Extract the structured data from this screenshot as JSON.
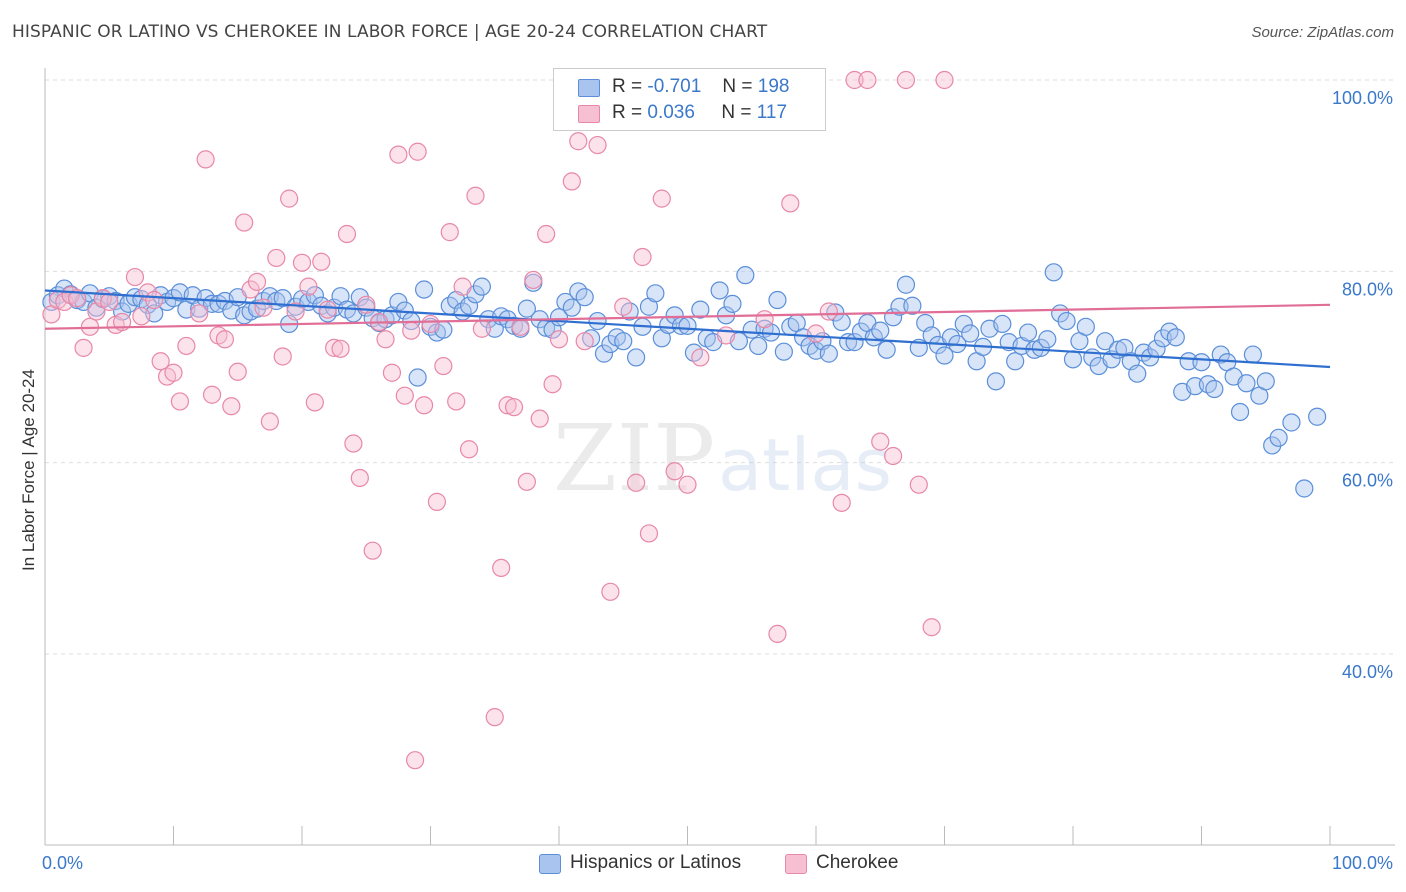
{
  "title": "HISPANIC OR LATINO VS CHEROKEE IN LABOR FORCE | AGE 20-24 CORRELATION CHART",
  "source": "Source: ZipAtlas.com",
  "watermark": {
    "zip": "ZIP",
    "atlas": "atlas"
  },
  "legend": {
    "r_label": "R =",
    "n_label": "N =",
    "rows": [
      {
        "r": "-0.701",
        "n": "198",
        "color": "#a9c4ee",
        "border": "#5b8fd9"
      },
      {
        "r": "0.036",
        "n": "117",
        "color": "#f7bfd2",
        "border": "#e888a8"
      }
    ]
  },
  "chart_data": {
    "type": "scatter",
    "title": "HISPANIC OR LATINO VS CHEROKEE IN LABOR FORCE | AGE 20-24 CORRELATION CHART",
    "xlabel": "",
    "ylabel": "In Labor Force | Age 20-24",
    "xlim": [
      0,
      100
    ],
    "ylim": [
      20,
      102
    ],
    "x_tick_labels": [
      "0.0%",
      "100.0%"
    ],
    "y_ticks": [
      40,
      60,
      80,
      100
    ],
    "y_tick_labels": [
      "40.0%",
      "60.0%",
      "80.0%",
      "100.0%"
    ],
    "grid": "horizontal dashed",
    "legend_position": "top-center",
    "series": [
      {
        "name": "Hispanics or Latinos",
        "color": "#5b8fd9",
        "fill": "#a9c4ee",
        "trend": {
          "x": [
            0,
            100
          ],
          "y": [
            78.0,
            70.0
          ],
          "color": "#2f6fd0"
        },
        "points": [
          [
            0.5,
            76.8
          ],
          [
            1.0,
            77.5
          ],
          [
            1.5,
            78.2
          ],
          [
            2.0,
            77.6
          ],
          [
            2.5,
            77.0
          ],
          [
            3.0,
            76.8
          ],
          [
            3.5,
            77.7
          ],
          [
            4.0,
            76.2
          ],
          [
            4.5,
            77.1
          ],
          [
            5.0,
            77.4
          ],
          [
            5.5,
            76.9
          ],
          [
            6.0,
            75.8
          ],
          [
            6.5,
            76.6
          ],
          [
            7.0,
            77.3
          ],
          [
            7.5,
            77.1
          ],
          [
            8.0,
            76.5
          ],
          [
            8.5,
            75.6
          ],
          [
            9.0,
            77.5
          ],
          [
            9.5,
            76.8
          ],
          [
            10.0,
            77.2
          ],
          [
            10.5,
            77.8
          ],
          [
            11.0,
            76.0
          ],
          [
            11.5,
            77.5
          ],
          [
            12.0,
            76.1
          ],
          [
            12.5,
            77.2
          ],
          [
            13.0,
            76.6
          ],
          [
            13.5,
            76.6
          ],
          [
            14.0,
            76.9
          ],
          [
            14.5,
            75.9
          ],
          [
            15.0,
            77.3
          ],
          [
            15.5,
            75.4
          ],
          [
            16.0,
            75.8
          ],
          [
            16.5,
            76.1
          ],
          [
            17.0,
            76.9
          ],
          [
            17.5,
            77.4
          ],
          [
            18.0,
            76.9
          ],
          [
            18.5,
            77.2
          ],
          [
            19.0,
            74.5
          ],
          [
            19.5,
            76.3
          ],
          [
            20.0,
            77.1
          ],
          [
            20.5,
            76.8
          ],
          [
            21.0,
            77.5
          ],
          [
            21.5,
            76.4
          ],
          [
            22.0,
            75.6
          ],
          [
            22.5,
            76.2
          ],
          [
            23.0,
            77.4
          ],
          [
            23.5,
            76.0
          ],
          [
            24.0,
            75.6
          ],
          [
            24.5,
            77.3
          ],
          [
            25.0,
            76.2
          ],
          [
            25.5,
            75.1
          ],
          [
            26.0,
            74.6
          ],
          [
            26.5,
            75.0
          ],
          [
            27.0,
            75.4
          ],
          [
            27.5,
            76.8
          ],
          [
            28.0,
            75.9
          ],
          [
            28.5,
            74.8
          ],
          [
            29.0,
            68.9
          ],
          [
            29.5,
            78.1
          ],
          [
            30.0,
            74.2
          ],
          [
            30.5,
            73.6
          ],
          [
            31.0,
            73.9
          ],
          [
            31.5,
            76.4
          ],
          [
            32.0,
            77.0
          ],
          [
            32.5,
            75.8
          ],
          [
            33.0,
            76.4
          ],
          [
            33.5,
            77.6
          ],
          [
            34.0,
            78.4
          ],
          [
            34.5,
            75.0
          ],
          [
            35.0,
            74.0
          ],
          [
            35.5,
            75.3
          ],
          [
            36.0,
            75.0
          ],
          [
            36.5,
            74.3
          ],
          [
            37.0,
            74.0
          ],
          [
            37.5,
            76.1
          ],
          [
            38.0,
            78.8
          ],
          [
            38.5,
            75.0
          ],
          [
            39.0,
            74.1
          ],
          [
            39.5,
            73.9
          ],
          [
            40.0,
            75.2
          ],
          [
            40.5,
            76.8
          ],
          [
            41.0,
            76.2
          ],
          [
            41.5,
            77.9
          ],
          [
            42.0,
            77.3
          ],
          [
            42.5,
            73.0
          ],
          [
            43.0,
            74.8
          ],
          [
            43.5,
            71.4
          ],
          [
            44.0,
            72.4
          ],
          [
            44.5,
            73.1
          ],
          [
            45.0,
            72.7
          ],
          [
            45.5,
            75.8
          ],
          [
            46.0,
            71.0
          ],
          [
            46.5,
            74.2
          ],
          [
            47.0,
            76.3
          ],
          [
            47.5,
            77.7
          ],
          [
            48.0,
            73.0
          ],
          [
            48.5,
            74.4
          ],
          [
            49.0,
            75.4
          ],
          [
            49.5,
            74.3
          ],
          [
            50.0,
            74.3
          ],
          [
            50.5,
            71.5
          ],
          [
            51.0,
            76.0
          ],
          [
            51.5,
            73.0
          ],
          [
            52.0,
            72.6
          ],
          [
            52.5,
            78.0
          ],
          [
            53.0,
            75.4
          ],
          [
            53.5,
            76.6
          ],
          [
            54.0,
            72.7
          ],
          [
            54.5,
            79.6
          ],
          [
            55.0,
            73.9
          ],
          [
            55.5,
            72.2
          ],
          [
            56.0,
            74.0
          ],
          [
            56.5,
            73.6
          ],
          [
            57.0,
            77.0
          ],
          [
            57.5,
            71.6
          ],
          [
            58.0,
            74.2
          ],
          [
            58.5,
            74.6
          ],
          [
            59.0,
            73.1
          ],
          [
            59.5,
            72.2
          ],
          [
            60.0,
            71.7
          ],
          [
            60.5,
            72.7
          ],
          [
            61.0,
            71.4
          ],
          [
            61.5,
            75.7
          ],
          [
            62.0,
            74.7
          ],
          [
            62.5,
            72.6
          ],
          [
            63.0,
            72.6
          ],
          [
            63.5,
            73.7
          ],
          [
            64.0,
            74.6
          ],
          [
            64.5,
            73.1
          ],
          [
            65.0,
            73.8
          ],
          [
            65.5,
            71.8
          ],
          [
            66.0,
            75.2
          ],
          [
            66.5,
            76.3
          ],
          [
            67.0,
            78.6
          ],
          [
            67.5,
            76.4
          ],
          [
            68.0,
            72.0
          ],
          [
            68.5,
            74.6
          ],
          [
            69.0,
            73.3
          ],
          [
            69.5,
            72.3
          ],
          [
            70.0,
            71.2
          ],
          [
            70.5,
            73.1
          ],
          [
            71.0,
            72.4
          ],
          [
            71.5,
            74.5
          ],
          [
            72.0,
            73.5
          ],
          [
            72.5,
            70.6
          ],
          [
            73.0,
            72.1
          ],
          [
            73.5,
            74.0
          ],
          [
            74.0,
            68.5
          ],
          [
            74.5,
            74.5
          ],
          [
            75.0,
            72.6
          ],
          [
            75.5,
            70.6
          ],
          [
            76.0,
            72.2
          ],
          [
            76.5,
            73.6
          ],
          [
            77.0,
            71.8
          ],
          [
            77.5,
            72.0
          ],
          [
            78.0,
            72.9
          ],
          [
            78.5,
            79.9
          ],
          [
            79.0,
            75.6
          ],
          [
            79.5,
            74.8
          ],
          [
            80.0,
            70.8
          ],
          [
            80.5,
            72.7
          ],
          [
            81.0,
            74.2
          ],
          [
            81.5,
            71.0
          ],
          [
            82.0,
            70.1
          ],
          [
            82.5,
            72.7
          ],
          [
            83.0,
            70.8
          ],
          [
            83.5,
            71.8
          ],
          [
            84.0,
            72.0
          ],
          [
            84.5,
            70.6
          ],
          [
            85.0,
            69.3
          ],
          [
            85.5,
            71.5
          ],
          [
            86.0,
            71.0
          ],
          [
            86.5,
            71.9
          ],
          [
            87.0,
            73.0
          ],
          [
            87.5,
            73.7
          ],
          [
            88.0,
            73.1
          ],
          [
            88.5,
            67.4
          ],
          [
            89.0,
            70.6
          ],
          [
            89.5,
            68.0
          ],
          [
            90.0,
            70.5
          ],
          [
            90.5,
            68.2
          ],
          [
            91.0,
            67.7
          ],
          [
            91.5,
            71.3
          ],
          [
            92.0,
            70.5
          ],
          [
            92.5,
            69.0
          ],
          [
            93.0,
            65.3
          ],
          [
            93.5,
            68.3
          ],
          [
            94.0,
            71.3
          ],
          [
            94.5,
            67.0
          ],
          [
            95.0,
            68.5
          ],
          [
            95.5,
            61.8
          ],
          [
            96.0,
            62.6
          ],
          [
            97.0,
            64.2
          ],
          [
            98.0,
            57.3
          ],
          [
            99.0,
            64.8
          ]
        ]
      },
      {
        "name": "Cherokee",
        "color": "#e888a8",
        "fill": "#f7bfd2",
        "trend": {
          "x": [
            0,
            100
          ],
          "y": [
            74.0,
            76.5
          ],
          "color": "#e06e97"
        },
        "points": [
          [
            0.5,
            75.5
          ],
          [
            1.0,
            77.0
          ],
          [
            1.5,
            76.8
          ],
          [
            2.0,
            77.5
          ],
          [
            2.5,
            77.2
          ],
          [
            3.0,
            72.0
          ],
          [
            3.5,
            74.2
          ],
          [
            4.0,
            75.8
          ],
          [
            4.5,
            77.2
          ],
          [
            5.0,
            76.8
          ],
          [
            5.5,
            74.4
          ],
          [
            6.0,
            74.7
          ],
          [
            7.0,
            79.4
          ],
          [
            7.5,
            75.3
          ],
          [
            8.0,
            77.8
          ],
          [
            8.5,
            77.0
          ],
          [
            9.0,
            70.6
          ],
          [
            9.5,
            69.0
          ],
          [
            10.0,
            69.4
          ],
          [
            10.5,
            66.4
          ],
          [
            11.0,
            72.2
          ],
          [
            12.0,
            75.6
          ],
          [
            12.5,
            91.7
          ],
          [
            13.0,
            67.1
          ],
          [
            13.5,
            73.3
          ],
          [
            14.0,
            72.9
          ],
          [
            14.5,
            65.9
          ],
          [
            15.0,
            69.5
          ],
          [
            15.5,
            85.1
          ],
          [
            16.0,
            78.1
          ],
          [
            16.5,
            78.9
          ],
          [
            17.0,
            76.2
          ],
          [
            17.5,
            64.3
          ],
          [
            18.0,
            81.4
          ],
          [
            18.5,
            71.1
          ],
          [
            19.0,
            87.6
          ],
          [
            19.5,
            75.8
          ],
          [
            20.0,
            80.9
          ],
          [
            20.5,
            78.4
          ],
          [
            21.0,
            66.3
          ],
          [
            21.5,
            81.0
          ],
          [
            22.0,
            76.0
          ],
          [
            22.5,
            72.0
          ],
          [
            23.0,
            71.9
          ],
          [
            23.5,
            83.9
          ],
          [
            24.0,
            62.0
          ],
          [
            24.5,
            58.4
          ],
          [
            25.0,
            76.5
          ],
          [
            25.5,
            50.8
          ],
          [
            26.0,
            74.7
          ],
          [
            26.5,
            72.9
          ],
          [
            27.0,
            69.4
          ],
          [
            27.5,
            92.2
          ],
          [
            28.0,
            67.0
          ],
          [
            28.5,
            73.8
          ],
          [
            29.0,
            92.5
          ],
          [
            29.5,
            66.0
          ],
          [
            30.0,
            74.5
          ],
          [
            30.5,
            55.9
          ],
          [
            31.0,
            70.1
          ],
          [
            31.5,
            84.1
          ],
          [
            32.0,
            66.4
          ],
          [
            32.5,
            78.4
          ],
          [
            33.0,
            61.4
          ],
          [
            33.5,
            87.9
          ],
          [
            34.0,
            74.0
          ],
          [
            35.0,
            33.4
          ],
          [
            35.5,
            49.0
          ],
          [
            36.0,
            66.0
          ],
          [
            36.5,
            65.8
          ],
          [
            37.0,
            74.2
          ],
          [
            37.5,
            58.0
          ],
          [
            38.0,
            79.1
          ],
          [
            38.5,
            64.6
          ],
          [
            39.0,
            83.9
          ],
          [
            39.5,
            68.2
          ],
          [
            40.0,
            72.9
          ],
          [
            41.0,
            89.4
          ],
          [
            41.5,
            93.6
          ],
          [
            42.0,
            72.7
          ],
          [
            43.0,
            93.2
          ],
          [
            44.0,
            46.5
          ],
          [
            45.0,
            76.3
          ],
          [
            46.0,
            57.9
          ],
          [
            46.5,
            81.5
          ],
          [
            47.0,
            52.6
          ],
          [
            48.0,
            87.6
          ],
          [
            49.0,
            59.1
          ],
          [
            50.0,
            57.7
          ],
          [
            50.5,
            100.0
          ],
          [
            51.0,
            71.0
          ],
          [
            52.0,
            100.0
          ],
          [
            53.0,
            73.3
          ],
          [
            54.0,
            100.0
          ],
          [
            55.0,
            100.0
          ],
          [
            56.0,
            75.0
          ],
          [
            57.0,
            42.1
          ],
          [
            58.0,
            87.1
          ],
          [
            60.0,
            73.5
          ],
          [
            61.0,
            75.8
          ],
          [
            62.0,
            55.8
          ],
          [
            63.0,
            100.0
          ],
          [
            64.0,
            100.0
          ],
          [
            65.0,
            62.2
          ],
          [
            66.0,
            60.7
          ],
          [
            67.0,
            100.0
          ],
          [
            68.0,
            57.7
          ],
          [
            69.0,
            42.8
          ],
          [
            70.0,
            100.0
          ],
          [
            28.8,
            28.9
          ]
        ]
      }
    ]
  }
}
